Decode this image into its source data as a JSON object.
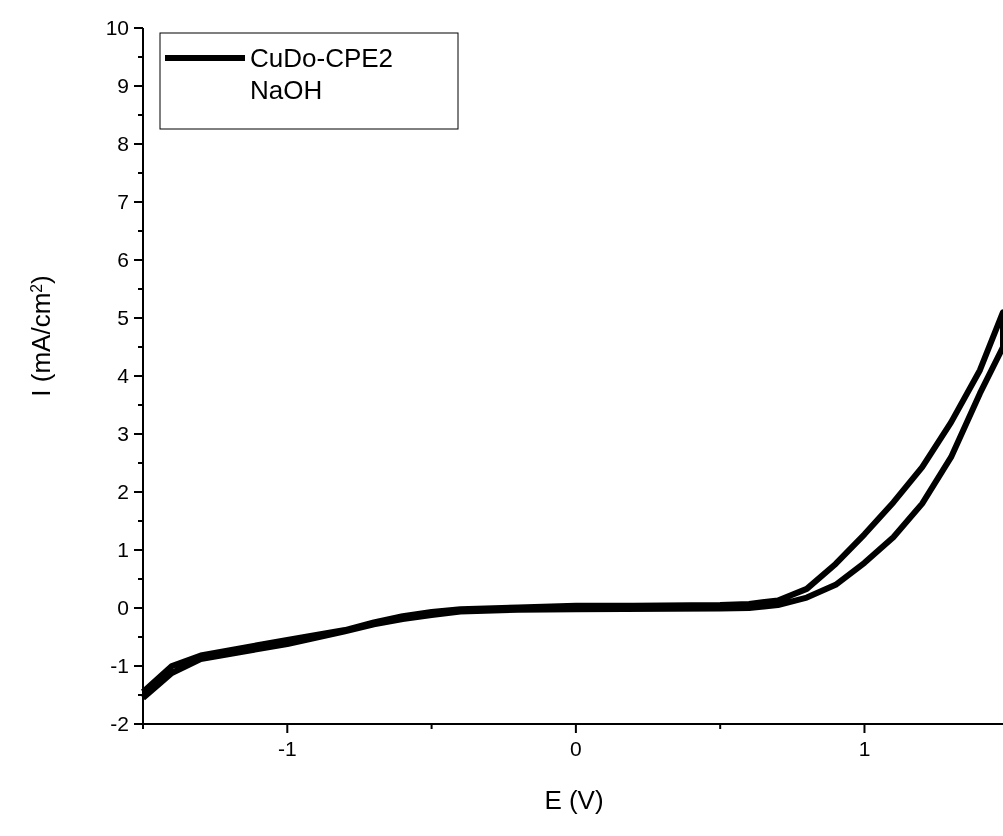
{
  "chart_data": {
    "type": "line",
    "xlabel": "E (V)",
    "ylabel": "I (mA/cm$^{2}$)",
    "xlim": [
      -1.5,
      1.48
    ],
    "ylim": [
      -2,
      10
    ],
    "xticks": [
      {
        "value": -1.5,
        "label": null
      },
      -1,
      {
        "value": -0.5,
        "label": null
      },
      0,
      {
        "value": 0.5,
        "label": null
      },
      1
    ],
    "yticks": [
      -2,
      {
        "value": -1.5,
        "label": null
      },
      -1,
      {
        "value": -0.5,
        "label": null
      },
      0,
      {
        "value": 0.5,
        "label": null
      },
      1,
      {
        "value": 1.5,
        "label": null
      },
      2,
      {
        "value": 2.5,
        "label": null
      },
      3,
      {
        "value": 3.5,
        "label": null
      },
      4,
      {
        "value": 4.5,
        "label": null
      },
      5,
      {
        "value": 5.5,
        "label": null
      },
      6,
      {
        "value": 6.5,
        "label": null
      },
      7,
      {
        "value": 7.5,
        "label": null
      },
      8,
      {
        "value": 8.5,
        "label": null
      },
      9,
      {
        "value": 9.5,
        "label": null
      },
      10
    ],
    "grid": false,
    "legend": "top left",
    "marker": "none",
    "line_style": "solid",
    "series": [
      {
        "name": "CuDo-CPE2 NaOH",
        "color": "#000000",
        "x": [
          -1.5,
          -1.4,
          -1.3,
          -1.0,
          -0.8,
          -0.7,
          -0.6,
          -0.5,
          -0.4,
          -0.2,
          0,
          0.5,
          0.6,
          0.7,
          0.8,
          0.9,
          1.0,
          1.1,
          1.2,
          1.3,
          1.4,
          1.48,
          1.48,
          1.4,
          1.3,
          1.2,
          1.1,
          1.0,
          0.9,
          0.8,
          0.7,
          0.6,
          0.5,
          0.2,
          0,
          -0.2,
          -0.4,
          -0.5,
          -0.6,
          -0.7,
          -0.8,
          -1.0,
          -1.3,
          -1.4,
          -1.5
        ],
        "values": [
          -1.55,
          -1.12,
          -0.88,
          -0.62,
          -0.4,
          -0.28,
          -0.19,
          -0.12,
          -0.06,
          -0.03,
          -0.02,
          -0.01,
          0.0,
          0.05,
          0.18,
          0.4,
          0.78,
          1.22,
          1.8,
          2.6,
          3.7,
          4.5,
          5.1,
          4.1,
          3.2,
          2.43,
          1.82,
          1.27,
          0.76,
          0.33,
          0.13,
          0.07,
          0.05,
          0.04,
          0.04,
          0.01,
          -0.02,
          -0.07,
          -0.14,
          -0.25,
          -0.38,
          -0.55,
          -0.82,
          -1.0,
          -1.45
        ]
      }
    ]
  }
}
